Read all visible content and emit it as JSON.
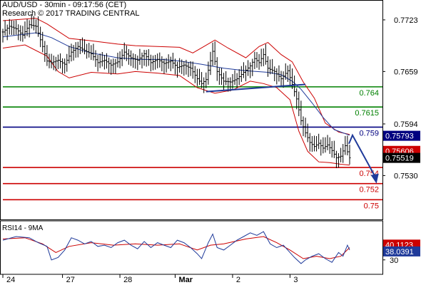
{
  "header": {
    "line1": "AUD/USD - 30min - 09:17:56 (CET)",
    "line2": "Research © 2017 TRADING CENTRAL"
  },
  "rsi_title": "RSI14 - 9MA",
  "colors": {
    "price": "#000000",
    "bollinger": "#cc0000",
    "moving_average": "#1f3a9a",
    "support": "#cc0000",
    "resistance": "#008000",
    "pivot": "#000080",
    "forecast_arrow": "#1f3a9a",
    "rsi_line": "#1f3a9a",
    "rsi_ma": "#cc0000"
  },
  "chart_data": [
    {
      "type": "line",
      "subtype": "ohlc-bars",
      "title": "AUD/USD - 30min - 09:17:56 (CET)",
      "ylim": [
        0.748,
        0.7745
      ],
      "y_ticks": [
        0.7723,
        0.7659,
        0.7594,
        0.753
      ],
      "x_ticks": [
        "24",
        "27",
        "28",
        "Mar",
        "2",
        "3"
      ],
      "current_price": 0.75519,
      "price_labels": [
        {
          "label": "0.75793",
          "value": 0.75793,
          "style": "blue"
        },
        {
          "label": "0.75606",
          "value": 0.75606,
          "style": "red"
        },
        {
          "label": "0.75519",
          "value": 0.75519,
          "style": "black"
        }
      ],
      "horizontal_levels": [
        {
          "label": "0.764",
          "value": 0.764,
          "role": "resistance"
        },
        {
          "label": "0.7615",
          "value": 0.7615,
          "role": "resistance"
        },
        {
          "label": "0.759",
          "value": 0.759,
          "role": "pivot"
        },
        {
          "label": "0.754",
          "value": 0.754,
          "role": "support"
        },
        {
          "label": "0.752",
          "value": 0.752,
          "role": "support"
        },
        {
          "label": "0.75",
          "value": 0.75,
          "role": "support"
        }
      ],
      "trendline": [
        {
          "x": 92,
          "y": 0.7634
        },
        {
          "x": 137,
          "y": 0.7643
        }
      ],
      "forecast_arrow": {
        "from": {
          "x": 157,
          "y": 0.758
        },
        "to": {
          "x": 164,
          "y": 0.752
        }
      },
      "price_path": [
        [
          0,
          0.7708
        ],
        [
          3,
          0.7715
        ],
        [
          6,
          0.7712
        ],
        [
          9,
          0.7704
        ],
        [
          12,
          0.7717
        ],
        [
          15,
          0.7715
        ],
        [
          18,
          0.769
        ],
        [
          20,
          0.7672
        ],
        [
          22,
          0.767
        ],
        [
          25,
          0.7673
        ],
        [
          28,
          0.7668
        ],
        [
          31,
          0.7683
        ],
        [
          34,
          0.769
        ],
        [
          37,
          0.7685
        ],
        [
          40,
          0.7681
        ],
        [
          43,
          0.767
        ],
        [
          46,
          0.7673
        ],
        [
          49,
          0.7667
        ],
        [
          52,
          0.7671
        ],
        [
          55,
          0.7683
        ],
        [
          58,
          0.7676
        ],
        [
          61,
          0.7673
        ],
        [
          64,
          0.7681
        ],
        [
          67,
          0.767
        ],
        [
          70,
          0.7674
        ],
        [
          73,
          0.7669
        ],
        [
          76,
          0.7672
        ],
        [
          79,
          0.7664
        ],
        [
          82,
          0.7667
        ],
        [
          85,
          0.7663
        ],
        [
          88,
          0.765
        ],
        [
          90,
          0.7644
        ],
        [
          92,
          0.7649
        ],
        [
          95,
          0.7684
        ],
        [
          97,
          0.7659
        ],
        [
          100,
          0.7647
        ],
        [
          103,
          0.7646
        ],
        [
          106,
          0.765
        ],
        [
          109,
          0.7658
        ],
        [
          112,
          0.7666
        ],
        [
          114,
          0.7675
        ],
        [
          116,
          0.767
        ],
        [
          118,
          0.768
        ],
        [
          120,
          0.7663
        ],
        [
          123,
          0.7659
        ],
        [
          126,
          0.765
        ],
        [
          129,
          0.766
        ],
        [
          131,
          0.7643
        ],
        [
          133,
          0.7625
        ],
        [
          135,
          0.7598
        ],
        [
          137,
          0.7583
        ],
        [
          139,
          0.7571
        ],
        [
          141,
          0.7566
        ],
        [
          143,
          0.757
        ],
        [
          145,
          0.7564
        ],
        [
          147,
          0.7568
        ],
        [
          149,
          0.7561
        ],
        [
          151,
          0.7552
        ],
        [
          153,
          0.7554
        ],
        [
          155,
          0.7567
        ],
        [
          157,
          0.7552
        ]
      ],
      "bollinger_upper": [
        [
          0,
          0.7722
        ],
        [
          15,
          0.7725
        ],
        [
          20,
          0.7718
        ],
        [
          30,
          0.77
        ],
        [
          40,
          0.7697
        ],
        [
          52,
          0.7693
        ],
        [
          60,
          0.7691
        ],
        [
          70,
          0.769
        ],
        [
          80,
          0.7689
        ],
        [
          86,
          0.7682
        ],
        [
          91,
          0.769
        ],
        [
          96,
          0.7698
        ],
        [
          102,
          0.7688
        ],
        [
          110,
          0.7676
        ],
        [
          116,
          0.769
        ],
        [
          120,
          0.7695
        ],
        [
          126,
          0.768
        ],
        [
          131,
          0.7671
        ],
        [
          136,
          0.7646
        ],
        [
          141,
          0.7626
        ],
        [
          146,
          0.7595
        ],
        [
          152,
          0.7584
        ],
        [
          157,
          0.7581
        ]
      ],
      "bollinger_lower": [
        [
          0,
          0.7688
        ],
        [
          10,
          0.7692
        ],
        [
          20,
          0.7678
        ],
        [
          25,
          0.7659
        ],
        [
          30,
          0.7651
        ],
        [
          40,
          0.7658
        ],
        [
          52,
          0.7656
        ],
        [
          60,
          0.7659
        ],
        [
          70,
          0.7657
        ],
        [
          80,
          0.7654
        ],
        [
          88,
          0.7639
        ],
        [
          96,
          0.7632
        ],
        [
          104,
          0.7636
        ],
        [
          112,
          0.7647
        ],
        [
          118,
          0.7644
        ],
        [
          124,
          0.7639
        ],
        [
          130,
          0.7624
        ],
        [
          134,
          0.7585
        ],
        [
          138,
          0.756
        ],
        [
          143,
          0.7547
        ],
        [
          148,
          0.7546
        ],
        [
          153,
          0.7544
        ],
        [
          157,
          0.7543
        ]
      ],
      "moving_average": [
        [
          0,
          0.7702
        ],
        [
          15,
          0.7707
        ],
        [
          22,
          0.7701
        ],
        [
          30,
          0.769
        ],
        [
          40,
          0.7682
        ],
        [
          52,
          0.7676
        ],
        [
          62,
          0.7674
        ],
        [
          72,
          0.7674
        ],
        [
          80,
          0.7672
        ],
        [
          90,
          0.7668
        ],
        [
          100,
          0.7663
        ],
        [
          110,
          0.766
        ],
        [
          120,
          0.7658
        ],
        [
          126,
          0.7655
        ],
        [
          131,
          0.7647
        ],
        [
          135,
          0.7637
        ],
        [
          140,
          0.762
        ],
        [
          145,
          0.7602
        ],
        [
          150,
          0.7587
        ],
        [
          157,
          0.758
        ]
      ]
    },
    {
      "type": "line",
      "title": "RSI14 - 9MA",
      "ylim": [
        20,
        60
      ],
      "y_ticks": [
        30
      ],
      "value_labels": [
        {
          "label": "40.1123",
          "value": 40.1123,
          "series": "9MA"
        },
        {
          "label": "38.0391",
          "value": 38.0391,
          "series": "RSI14"
        }
      ],
      "rsi_path": [
        [
          0,
          46
        ],
        [
          6,
          49
        ],
        [
          12,
          48
        ],
        [
          16,
          44
        ],
        [
          20,
          41
        ],
        [
          22,
          30
        ],
        [
          25,
          32
        ],
        [
          28,
          38
        ],
        [
          31,
          48
        ],
        [
          34,
          46
        ],
        [
          37,
          43
        ],
        [
          40,
          45
        ],
        [
          43,
          41
        ],
        [
          46,
          42
        ],
        [
          49,
          40
        ],
        [
          52,
          44
        ],
        [
          55,
          46
        ],
        [
          58,
          42
        ],
        [
          61,
          39
        ],
        [
          64,
          45
        ],
        [
          67,
          40
        ],
        [
          70,
          44
        ],
        [
          73,
          42
        ],
        [
          76,
          40
        ],
        [
          79,
          46
        ],
        [
          82,
          44
        ],
        [
          85,
          40
        ],
        [
          88,
          35
        ],
        [
          90,
          31
        ],
        [
          93,
          44
        ],
        [
          95,
          51
        ],
        [
          97,
          40
        ],
        [
          100,
          38
        ],
        [
          103,
          42
        ],
        [
          106,
          46
        ],
        [
          109,
          49
        ],
        [
          112,
          52
        ],
        [
          115,
          50
        ],
        [
          118,
          53
        ],
        [
          121,
          43
        ],
        [
          124,
          40
        ],
        [
          127,
          42
        ],
        [
          130,
          36
        ],
        [
          132,
          32
        ],
        [
          135,
          27
        ],
        [
          137,
          30
        ],
        [
          140,
          33
        ],
        [
          143,
          35
        ],
        [
          146,
          31
        ],
        [
          149,
          28
        ],
        [
          152,
          36
        ],
        [
          154,
          33
        ],
        [
          156,
          42
        ],
        [
          157,
          38
        ]
      ],
      "rsi_ma": [
        [
          0,
          47
        ],
        [
          10,
          48
        ],
        [
          18,
          43
        ],
        [
          24,
          36
        ],
        [
          30,
          41
        ],
        [
          40,
          44
        ],
        [
          50,
          42
        ],
        [
          60,
          43
        ],
        [
          70,
          42
        ],
        [
          80,
          43
        ],
        [
          88,
          38
        ],
        [
          94,
          42
        ],
        [
          100,
          43
        ],
        [
          110,
          47
        ],
        [
          118,
          49
        ],
        [
          124,
          44
        ],
        [
          130,
          38
        ],
        [
          136,
          31
        ],
        [
          142,
          33
        ],
        [
          148,
          31
        ],
        [
          153,
          33
        ],
        [
          157,
          40
        ]
      ]
    }
  ]
}
